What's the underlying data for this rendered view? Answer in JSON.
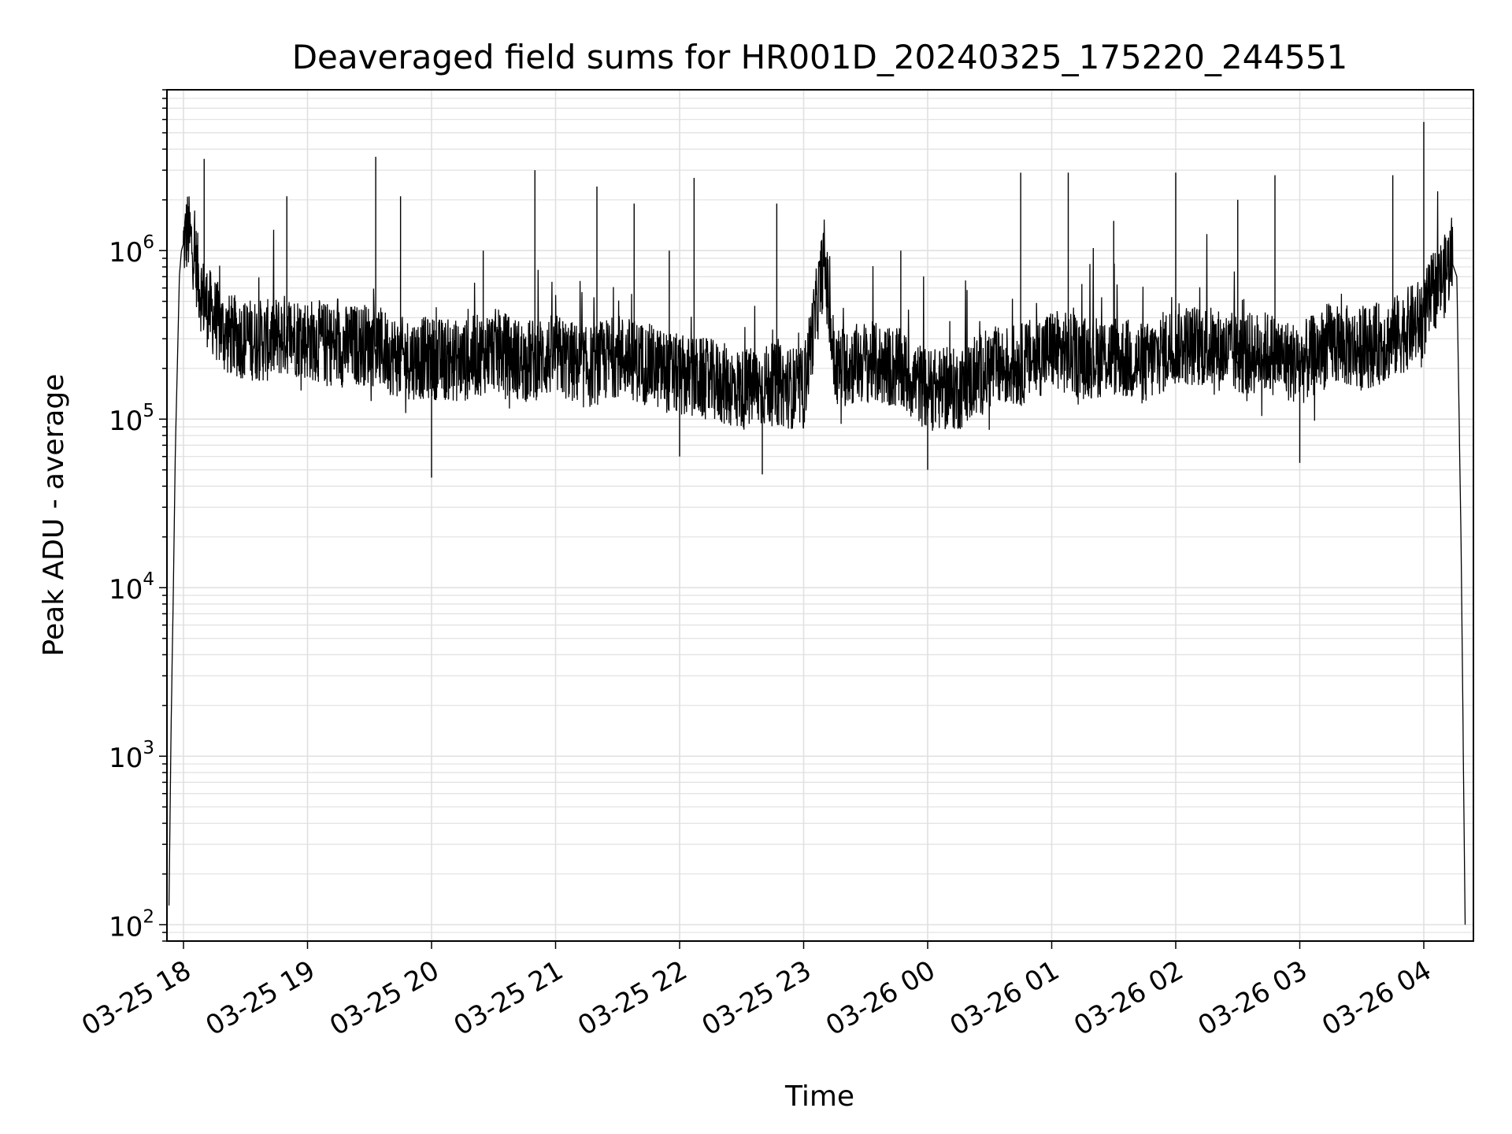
{
  "chart_data": {
    "type": "line",
    "title": "Deaveraged field sums for HR001D_20240325_175220_244551",
    "xlabel": "Time",
    "ylabel": "Peak ADU - average",
    "yscale": "log",
    "ylim": [
      80,
      9000000
    ],
    "xlim": [
      "03-25 17:52",
      "03-26 04:24"
    ],
    "grid": true,
    "line_color": "#000000",
    "grid_color": "#e0e0e0",
    "x_ticks": [
      {
        "t": "03-25 18:00",
        "label": "03-25 18"
      },
      {
        "t": "03-25 19:00",
        "label": "03-25 19"
      },
      {
        "t": "03-25 20:00",
        "label": "03-25 20"
      },
      {
        "t": "03-25 21:00",
        "label": "03-25 21"
      },
      {
        "t": "03-25 22:00",
        "label": "03-25 22"
      },
      {
        "t": "03-25 23:00",
        "label": "03-25 23"
      },
      {
        "t": "03-26 00:00",
        "label": "03-26 00"
      },
      {
        "t": "03-26 01:00",
        "label": "03-26 01"
      },
      {
        "t": "03-26 02:00",
        "label": "03-26 02"
      },
      {
        "t": "03-26 03:00",
        "label": "03-26 03"
      },
      {
        "t": "03-26 04:00",
        "label": "03-26 04"
      }
    ],
    "y_ticks": [
      {
        "value": 100,
        "base": "10",
        "exp": "2"
      },
      {
        "value": 1000,
        "base": "10",
        "exp": "3"
      },
      {
        "value": 10000,
        "base": "10",
        "exp": "4"
      },
      {
        "value": 100000,
        "base": "10",
        "exp": "5"
      },
      {
        "value": 1000000,
        "base": "10",
        "exp": "6"
      }
    ],
    "series": [
      {
        "x": [
          "03-25 17:53",
          "03-25 17:54",
          "03-25 17:55",
          "03-25 17:56",
          "03-25 17:57",
          "03-25 17:58",
          "03-25 17:59",
          "03-25 18:00",
          "03-25 18:02",
          "03-25 18:05",
          "03-25 18:08",
          "03-25 18:10",
          "03-25 18:15",
          "03-25 18:20",
          "03-25 18:30",
          "03-25 18:40",
          "03-25 18:50",
          "03-25 19:00",
          "03-25 19:15",
          "03-25 19:30",
          "03-25 19:45",
          "03-25 20:00",
          "03-25 20:15",
          "03-25 20:30",
          "03-25 20:45",
          "03-25 21:00",
          "03-25 21:15",
          "03-25 21:30",
          "03-25 21:45",
          "03-25 22:00",
          "03-25 22:15",
          "03-25 22:30",
          "03-25 22:45",
          "03-25 23:00",
          "03-25 23:10",
          "03-25 23:15",
          "03-25 23:30",
          "03-25 23:45",
          "03-26 00:00",
          "03-26 00:15",
          "03-26 00:30",
          "03-26 00:45",
          "03-26 01:00",
          "03-26 01:15",
          "03-26 01:30",
          "03-26 01:45",
          "03-26 02:00",
          "03-26 02:15",
          "03-26 02:30",
          "03-26 02:45",
          "03-26 03:00",
          "03-26 03:15",
          "03-26 03:30",
          "03-26 03:45",
          "03-26 04:00",
          "03-26 04:05",
          "03-26 04:10",
          "03-26 04:13",
          "03-26 04:16",
          "03-26 04:18",
          "03-26 04:20"
        ],
        "y": [
          130,
          1500,
          8000,
          60000,
          200000,
          700000,
          1000000,
          1100000,
          1300000,
          1000000,
          600000,
          500000,
          400000,
          320000,
          300000,
          290000,
          320000,
          300000,
          270000,
          280000,
          230000,
          230000,
          220000,
          260000,
          220000,
          240000,
          200000,
          240000,
          210000,
          180000,
          170000,
          150000,
          160000,
          150000,
          900000,
          200000,
          220000,
          200000,
          150000,
          150000,
          200000,
          210000,
          260000,
          230000,
          240000,
          210000,
          280000,
          270000,
          240000,
          250000,
          210000,
          280000,
          260000,
          300000,
          400000,
          600000,
          700000,
          900000,
          700000,
          20000,
          100
        ]
      }
    ],
    "spikes": [
      {
        "t": "03-25 18:10",
        "y": 3500000
      },
      {
        "t": "03-25 18:50",
        "y": 2100000
      },
      {
        "t": "03-25 19:33",
        "y": 3600000
      },
      {
        "t": "03-25 19:45",
        "y": 2100000
      },
      {
        "t": "03-25 20:00",
        "y": 45000
      },
      {
        "t": "03-25 20:25",
        "y": 1000000
      },
      {
        "t": "03-25 20:50",
        "y": 3000000
      },
      {
        "t": "03-25 21:20",
        "y": 2400000
      },
      {
        "t": "03-25 21:38",
        "y": 1900000
      },
      {
        "t": "03-25 21:55",
        "y": 1000000
      },
      {
        "t": "03-25 22:00",
        "y": 60000
      },
      {
        "t": "03-25 22:07",
        "y": 2700000
      },
      {
        "t": "03-25 22:47",
        "y": 1900000
      },
      {
        "t": "03-25 22:40",
        "y": 47000
      },
      {
        "t": "03-25 23:47",
        "y": 1000000
      },
      {
        "t": "03-26 00:00",
        "y": 50000
      },
      {
        "t": "03-26 00:45",
        "y": 2900000
      },
      {
        "t": "03-26 01:08",
        "y": 2900000
      },
      {
        "t": "03-26 01:30",
        "y": 1500000
      },
      {
        "t": "03-26 02:00",
        "y": 2900000
      },
      {
        "t": "03-26 02:30",
        "y": 2000000
      },
      {
        "t": "03-26 02:48",
        "y": 2800000
      },
      {
        "t": "03-26 03:00",
        "y": 55000
      },
      {
        "t": "03-26 03:45",
        "y": 2800000
      },
      {
        "t": "03-26 04:00",
        "y": 5800000
      }
    ]
  }
}
